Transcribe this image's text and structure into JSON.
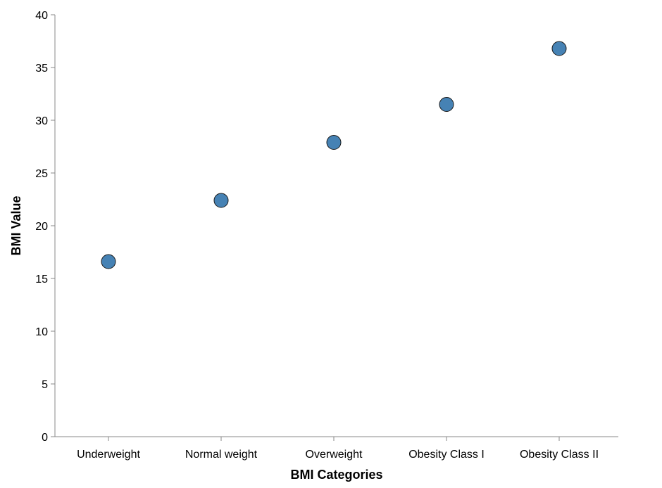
{
  "chart_data": {
    "type": "scatter",
    "categories": [
      "Underweight",
      "Normal weight",
      "Overweight",
      "Obesity Class I",
      "Obesity Class II"
    ],
    "values": [
      16.6,
      22.4,
      27.9,
      31.5,
      36.8
    ],
    "xlabel": "BMI Categories",
    "ylabel": "BMI Value",
    "ylim": [
      0,
      40
    ],
    "yticks": [
      0,
      5,
      10,
      15,
      20,
      25,
      30,
      35,
      40
    ],
    "grid": false,
    "point_color": "#4682b4"
  }
}
